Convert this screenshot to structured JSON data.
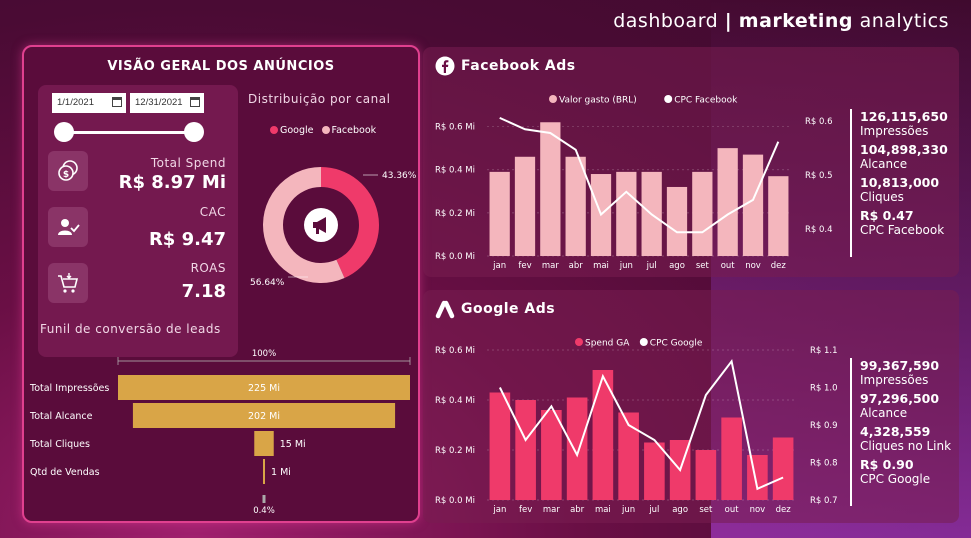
{
  "header": {
    "prefix": "dashboard",
    "separator": "|",
    "bold": "marketing",
    "suffix": "analytics"
  },
  "overview": {
    "title": "VISÃO GERAL DOS ANÚNCIOS",
    "date_start": "1/1/2021",
    "date_end": "12/31/2021",
    "kpis": [
      {
        "label": "Total Spend",
        "value": "R$ 8.97 Mi",
        "icon": "money-icon"
      },
      {
        "label": "CAC",
        "value": "R$ 9.47",
        "icon": "user-check-icon"
      },
      {
        "label": "ROAS",
        "value": "7.18",
        "icon": "cart-icon"
      }
    ],
    "donut": {
      "title": "Distribuição por canal",
      "legend": [
        "Google",
        "Facebook"
      ],
      "colors": {
        "google": "#ef3a6a",
        "facebook": "#f4b6bd"
      },
      "label_google": "43.36%",
      "label_facebook": "56.64%",
      "google_share": 43.36,
      "icon": "megaphone-icon"
    },
    "funnel": {
      "title": "Funil de conversão de leads",
      "top_pct": "100%",
      "bottom_pct": "0.4%",
      "rows": [
        {
          "label": "Total Impressões",
          "value": "225 Mi",
          "amount": 225
        },
        {
          "label": "Total Alcance",
          "value": "202 Mi",
          "amount": 202
        },
        {
          "label": "Total Cliques",
          "value": "15 Mi",
          "amount": 15
        },
        {
          "label": "Qtd de Vendas",
          "value": "1 Mi",
          "amount": 1
        }
      ]
    }
  },
  "facebook": {
    "title": "Facebook Ads",
    "icon": "facebook-icon",
    "stats": [
      {
        "value": "126,115,650",
        "label": "Impressões"
      },
      {
        "value": "104,898,330",
        "label": "Alcance"
      },
      {
        "value": "10,813,000",
        "label": "Cliques"
      },
      {
        "value": "R$ 0.47",
        "label": "CPC Facebook"
      }
    ]
  },
  "google": {
    "title": "Google Ads",
    "icon": "google-ads-icon",
    "stats": [
      {
        "value": "99,367,590",
        "label": "Impressões"
      },
      {
        "value": "97,296,500",
        "label": "Alcance"
      },
      {
        "value": "4,328,559",
        "label": "Cliques no Link"
      },
      {
        "value": "R$ 0.90",
        "label": "CPC Google"
      }
    ]
  },
  "chart_data": [
    {
      "type": "bar",
      "categories": [
        "jan",
        "fev",
        "mar",
        "abr",
        "mai",
        "jun",
        "jul",
        "ago",
        "set",
        "out",
        "nov",
        "dez"
      ],
      "series": [
        {
          "name": "Valor gasto (BRL)",
          "axis": "left",
          "type": "bar",
          "color": "#f4b6bd",
          "values": [
            0.39,
            0.46,
            0.62,
            0.46,
            0.38,
            0.39,
            0.39,
            0.32,
            0.39,
            0.5,
            0.47,
            0.37
          ]
        },
        {
          "name": "CPC Facebook",
          "axis": "right",
          "type": "line",
          "color": "#ffffff",
          "values": [
            0.606,
            0.585,
            0.578,
            0.547,
            0.427,
            0.469,
            0.427,
            0.394,
            0.394,
            0.427,
            0.454,
            0.562
          ]
        }
      ],
      "yticks_left": [
        "R$ 0.0 Mi",
        "R$ 0.2 Mi",
        "R$ 0.4 Mi",
        "R$ 0.6 Mi"
      ],
      "yticks_right": [
        "R$ 0.4",
        "R$ 0.5",
        "R$ 0.6"
      ],
      "ylim_left": [
        0,
        0.7
      ],
      "ylim_right": [
        0.35,
        0.63
      ],
      "legend_position": "top-center"
    },
    {
      "type": "bar",
      "categories": [
        "jan",
        "fev",
        "mar",
        "abr",
        "mai",
        "jun",
        "jul",
        "ago",
        "set",
        "out",
        "nov",
        "dez"
      ],
      "series": [
        {
          "name": "Spend GA",
          "axis": "left",
          "type": "bar",
          "color": "#ef3a6a",
          "values": [
            0.43,
            0.4,
            0.36,
            0.41,
            0.52,
            0.35,
            0.23,
            0.24,
            0.2,
            0.33,
            0.18,
            0.25
          ]
        },
        {
          "name": "CPC Google",
          "axis": "right",
          "type": "line",
          "color": "#ffffff",
          "values": [
            1.0,
            0.86,
            0.95,
            0.82,
            1.03,
            0.9,
            0.86,
            0.78,
            0.98,
            1.07,
            0.73,
            0.76
          ]
        }
      ],
      "yticks_left": [
        "R$ 0.0 Mi",
        "R$ 0.2 Mi",
        "R$ 0.4 Mi",
        "R$ 0.6 Mi"
      ],
      "yticks_right": [
        "R$ 0.7",
        "R$ 0.8",
        "R$ 0.9",
        "R$ 1.0",
        "R$ 1.1"
      ],
      "ylim_left": [
        0,
        0.6
      ],
      "ylim_right": [
        0.7,
        1.1
      ],
      "legend_position": "top-center"
    }
  ]
}
